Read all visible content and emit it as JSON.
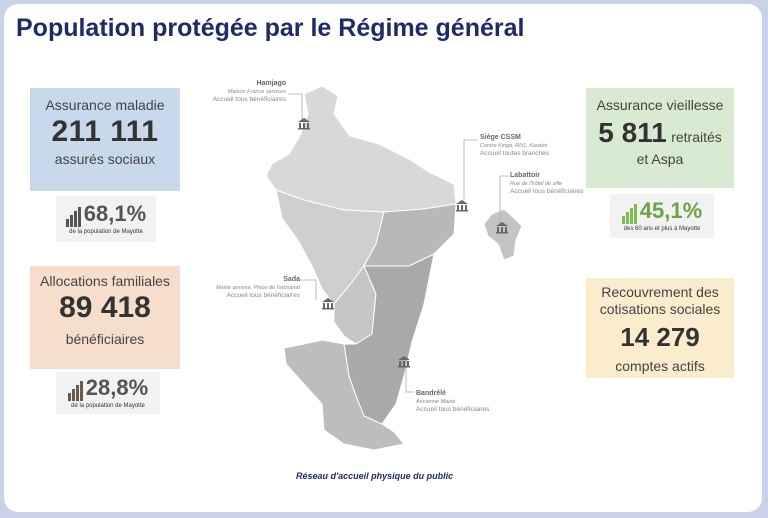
{
  "title": "Population protégée par le Régime général",
  "caption": "Réseau d'accueil physique du public",
  "colors": {
    "title": "#1f2a68",
    "maladie": "#c8d9ec",
    "famille": "#f6ddcc",
    "vieillesse": "#d8ebd2",
    "recouvrement": "#fbeccd",
    "vieillesse_pct": "#6ba544"
  },
  "cards": {
    "maladie": {
      "label": "Assurance maladie",
      "value": "211 111",
      "unit": "assurés sociaux"
    },
    "famille": {
      "label": "Allocations familiales",
      "value": "89 418",
      "unit": "bénéficiaires"
    },
    "vieillesse": {
      "label": "Assurance vieillesse",
      "value": "5 811",
      "unit": "retraités",
      "unit2": "et Aspa"
    },
    "recouvrement": {
      "label1": "Recouvrement des",
      "label2": "cotisations sociales",
      "value": "14 279",
      "unit": "comptes actifs"
    }
  },
  "stats": {
    "maladie": {
      "pct": "68,1%",
      "note": "de la population de Mayotte",
      "icon": "bar-chart-icon"
    },
    "famille": {
      "pct": "28,8%",
      "note": "de la population de Mayotte",
      "icon": "bar-chart-icon"
    },
    "vieillesse": {
      "pct": "45,1%",
      "note": "des 60 ans et plus à Mayotte",
      "icon": "bar-chart-icon"
    }
  },
  "sites": {
    "hamjago": {
      "name": "Hamjago",
      "desc": "Maison France services",
      "service": "Accueil tous bénéficiaires"
    },
    "siege": {
      "name": "Siège CSSM",
      "desc": "Centre Kinga, RN1, Kawéni",
      "service": "Accueil toutes branches"
    },
    "labattoir": {
      "name": "Labattoir",
      "desc": "Rue de l'hôtel de ville",
      "service": "Accueil tous bénéficiaires"
    },
    "sada": {
      "name": "Sada",
      "desc": "Mairie annexe, Place de l'artisanat",
      "service": "Accueil tous bénéficiaires"
    },
    "bandrele": {
      "name": "Bandrélé",
      "desc": "Ancienne Mairie",
      "service": "Accueil tous bénéficiaires"
    }
  }
}
